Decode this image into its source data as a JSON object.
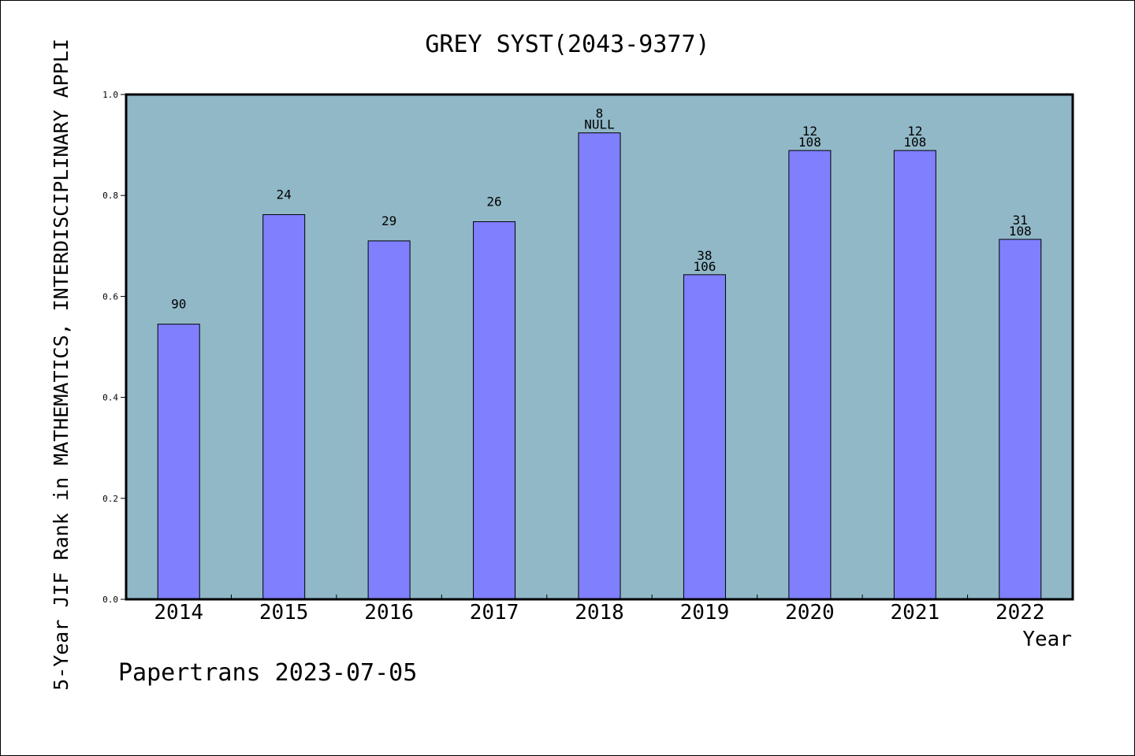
{
  "chart_data": {
    "type": "bar",
    "title": "GREY SYST(2043-9377)",
    "xlabel": "Year",
    "ylabel": "5-Year JIF Rank in MATHEMATICS,  INTERDISCIPLINARY APPLI",
    "footer": "Papertrans 2023-07-05",
    "categories": [
      "2014",
      "2015",
      "2016",
      "2017",
      "2018",
      "2019",
      "2020",
      "2021",
      "2022"
    ],
    "values": [
      0.545,
      0.762,
      0.71,
      0.748,
      0.924,
      0.643,
      0.889,
      0.889,
      0.713
    ],
    "labels_top": [
      "90",
      "24",
      "29",
      "26",
      "8",
      "38",
      "12",
      "12",
      "31"
    ],
    "labels_bottom": [
      "",
      "",
      "",
      "",
      "NULL",
      "106",
      "108",
      "108",
      "108"
    ],
    "yticks": [
      "0.0",
      "0.2",
      "0.4",
      "0.6",
      "0.8",
      "1.0"
    ],
    "ylim": [
      0,
      1.0
    ],
    "grid": false,
    "legend": "none",
    "colors": {
      "plot_background": "#91b8c7",
      "bar_fill": "#8080ff",
      "bar_stroke": "#000000"
    }
  }
}
